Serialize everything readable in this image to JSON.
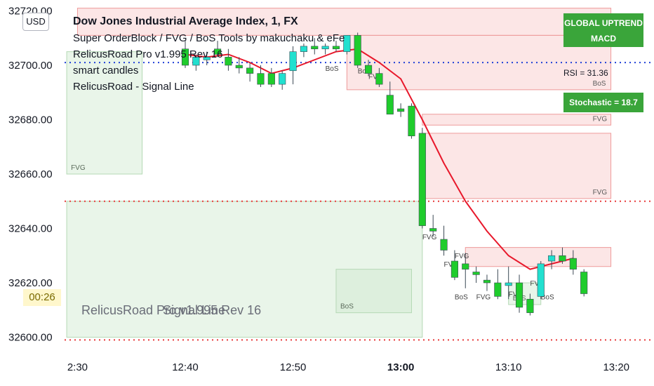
{
  "currency": "USD",
  "countdown": "00:26",
  "legend": {
    "title": "Dow Jones Industrial Average Index, 1, FX",
    "lines": [
      "Super OrderBlock / FVG / BoS Tools by makuchaku & eFe",
      "RelicusRoad Pro v1.995 Rev 16",
      "smart candles",
      "RelicusRoad - Signal Line"
    ]
  },
  "watermark": {
    "line1": "RelicusRoad Pro v1.995 Rev 16",
    "line2": "Signal Line"
  },
  "badges": {
    "trend_line1": "GLOBAL UPTREND",
    "trend_line2": "MACD",
    "rsi": "RSI = 31.36",
    "stochastic": "Stochastic = 18.7"
  },
  "colors": {
    "up": "#22e0cf",
    "down": "#1fcc2c",
    "zone_red": "#f5b7b7",
    "zone_green": "#cfe8cf",
    "signal": "#e8182b",
    "badge": "#3aa53a"
  },
  "chart_data": {
    "type": "candlestick",
    "y_ticks": [
      "32720.00",
      "32700.00",
      "32680.00",
      "32660.00",
      "32640.00",
      "32620.00",
      "32600.00"
    ],
    "x_ticks": [
      {
        "label": "2:30",
        "t": 0,
        "bold": false
      },
      {
        "label": "12:40",
        "t": 10,
        "bold": false
      },
      {
        "label": "12:50",
        "t": 20,
        "bold": false
      },
      {
        "label": "13:00",
        "t": 30,
        "bold": true
      },
      {
        "label": "13:10",
        "t": 40,
        "bold": false
      },
      {
        "label": "13:20",
        "t": 50,
        "bold": false
      }
    ],
    "ylim": [
      32596,
      32724
    ],
    "xlim": [
      -1.2,
      53.5
    ],
    "candles": [
      {
        "t": 10,
        "o": 32706,
        "h": 32709,
        "l": 32699,
        "c": 32700
      },
      {
        "t": 11,
        "o": 32700,
        "h": 32704,
        "l": 32698,
        "c": 32703
      },
      {
        "t": 12,
        "o": 32702,
        "h": 32705,
        "l": 32700,
        "c": 32703
      },
      {
        "t": 13,
        "o": 32706,
        "h": 32709,
        "l": 32703,
        "c": 32704
      },
      {
        "t": 14,
        "o": 32703,
        "h": 32706,
        "l": 32698,
        "c": 32700
      },
      {
        "t": 15,
        "o": 32700,
        "h": 32703,
        "l": 32697,
        "c": 32699
      },
      {
        "t": 16,
        "o": 32699,
        "h": 32701,
        "l": 32694,
        "c": 32697
      },
      {
        "t": 17,
        "o": 32697,
        "h": 32700,
        "l": 32692,
        "c": 32693
      },
      {
        "t": 18,
        "o": 32697,
        "h": 32699,
        "l": 32692,
        "c": 32693
      },
      {
        "t": 19,
        "o": 32693,
        "h": 32698,
        "l": 32691,
        "c": 32697
      },
      {
        "t": 20,
        "o": 32698,
        "h": 32707,
        "l": 32693,
        "c": 32705
      },
      {
        "t": 21,
        "o": 32705,
        "h": 32708,
        "l": 32703,
        "c": 32707
      },
      {
        "t": 22,
        "o": 32707,
        "h": 32710,
        "l": 32704,
        "c": 32706
      },
      {
        "t": 23,
        "o": 32706,
        "h": 32708,
        "l": 32704,
        "c": 32707
      },
      {
        "t": 24,
        "o": 32707,
        "h": 32709,
        "l": 32705,
        "c": 32706
      },
      {
        "t": 25,
        "o": 32705,
        "h": 32711,
        "l": 32704,
        "c": 32711
      },
      {
        "t": 26,
        "o": 32711,
        "h": 32712,
        "l": 32699,
        "c": 32700
      },
      {
        "t": 27,
        "o": 32700,
        "h": 32702,
        "l": 32696,
        "c": 32697
      },
      {
        "t": 28,
        "o": 32697,
        "h": 32699,
        "l": 32692,
        "c": 32693
      },
      {
        "t": 29,
        "o": 32689,
        "h": 32694,
        "l": 32682,
        "c": 32682
      },
      {
        "t": 30,
        "o": 32684,
        "h": 32686,
        "l": 32681,
        "c": 32683
      },
      {
        "t": 31,
        "o": 32685,
        "h": 32686,
        "l": 32673,
        "c": 32674
      },
      {
        "t": 32,
        "o": 32675,
        "h": 32677,
        "l": 32640,
        "c": 32641
      },
      {
        "t": 33,
        "o": 32640,
        "h": 32645,
        "l": 32637,
        "c": 32639
      },
      {
        "t": 34,
        "o": 32636,
        "h": 32641,
        "l": 32630,
        "c": 32632
      },
      {
        "t": 35,
        "o": 32628,
        "h": 32632,
        "l": 32621,
        "c": 32622
      },
      {
        "t": 36,
        "o": 32627,
        "h": 32631,
        "l": 32618,
        "c": 32625
      },
      {
        "t": 37,
        "o": 32624,
        "h": 32626,
        "l": 32620,
        "c": 32623
      },
      {
        "t": 38,
        "o": 32621,
        "h": 32623,
        "l": 32617,
        "c": 32620
      },
      {
        "t": 39,
        "o": 32620,
        "h": 32625,
        "l": 32614,
        "c": 32615
      },
      {
        "t": 40,
        "o": 32619,
        "h": 32626,
        "l": 32614,
        "c": 32620
      },
      {
        "t": 41,
        "o": 32620,
        "h": 32623,
        "l": 32609,
        "c": 32611
      },
      {
        "t": 42,
        "o": 32614,
        "h": 32616,
        "l": 32608,
        "c": 32609
      },
      {
        "t": 43,
        "o": 32615,
        "h": 32628,
        "l": 32614,
        "c": 32627
      },
      {
        "t": 44,
        "o": 32628,
        "h": 32632,
        "l": 32625,
        "c": 32630
      },
      {
        "t": 45,
        "o": 32630,
        "h": 32633,
        "l": 32627,
        "c": 32628
      },
      {
        "t": 46,
        "o": 32629,
        "h": 32632,
        "l": 32623,
        "c": 32625
      },
      {
        "t": 47,
        "o": 32624,
        "h": 32625,
        "l": 32615,
        "c": 32616
      }
    ],
    "signal_line": [
      [
        10,
        32704
      ],
      [
        12,
        32703
      ],
      [
        14,
        32704
      ],
      [
        16,
        32701
      ],
      [
        18,
        32697
      ],
      [
        20,
        32699
      ],
      [
        22,
        32702
      ],
      [
        24,
        32705
      ],
      [
        26,
        32706
      ],
      [
        28,
        32701
      ],
      [
        30,
        32695
      ],
      [
        32,
        32680
      ],
      [
        34,
        32664
      ],
      [
        36,
        32650
      ],
      [
        38,
        32639
      ],
      [
        40,
        32630
      ],
      [
        42,
        32625
      ],
      [
        44,
        32627
      ],
      [
        46,
        32629
      ]
    ],
    "red_zones": [
      {
        "t0": 0,
        "t1": 49.5,
        "y0": 32711,
        "y1": 32721,
        "label": ""
      },
      {
        "t0": 25,
        "t1": 49.5,
        "y0": 32691,
        "y1": 32711,
        "label": "BoS"
      },
      {
        "t0": 32,
        "t1": 49.5,
        "y0": 32678,
        "y1": 32682,
        "label": "FVG"
      },
      {
        "t0": 32,
        "t1": 49.5,
        "y0": 32651,
        "y1": 32675,
        "label": "FVG"
      },
      {
        "t0": 36,
        "t1": 49.5,
        "y0": 32626,
        "y1": 32633,
        "label": ""
      }
    ],
    "green_zones": [
      {
        "t0": -1,
        "t1": 6,
        "y0": 32660,
        "y1": 32705,
        "label": "FVG"
      },
      {
        "t0": -1,
        "t1": 32,
        "y0": 32600,
        "y1": 32650,
        "label": ""
      },
      {
        "t0": 24,
        "t1": 31,
        "y0": 32609,
        "y1": 32625,
        "label": "BoS"
      },
      {
        "t0": 40,
        "t1": 43,
        "y0": 32612,
        "y1": 32620,
        "label": "BoS"
      }
    ],
    "zone_labels": [
      {
        "t": 23,
        "y": 32698,
        "text": "BoS"
      },
      {
        "t": 26,
        "y": 32697,
        "text": "BoS"
      },
      {
        "t": 27,
        "y": 32695,
        "text": "FVG"
      },
      {
        "t": 32,
        "y": 32636,
        "text": "FVG"
      },
      {
        "t": 34,
        "y": 32626,
        "text": "FVG"
      },
      {
        "t": 35,
        "y": 32629,
        "text": "FVG"
      },
      {
        "t": 35,
        "y": 32614,
        "text": "BoS"
      },
      {
        "t": 40,
        "y": 32615,
        "text": "FVG"
      },
      {
        "t": 42,
        "y": 32619,
        "text": "FVG"
      },
      {
        "t": 43,
        "y": 32614,
        "text": "BoS"
      },
      {
        "t": 37,
        "y": 32614,
        "text": "FVG"
      }
    ],
    "dotted_lines": [
      {
        "y": 32701,
        "color": "blue"
      },
      {
        "y": 32650,
        "color": "red"
      },
      {
        "y": 32599,
        "color": "red"
      }
    ]
  }
}
